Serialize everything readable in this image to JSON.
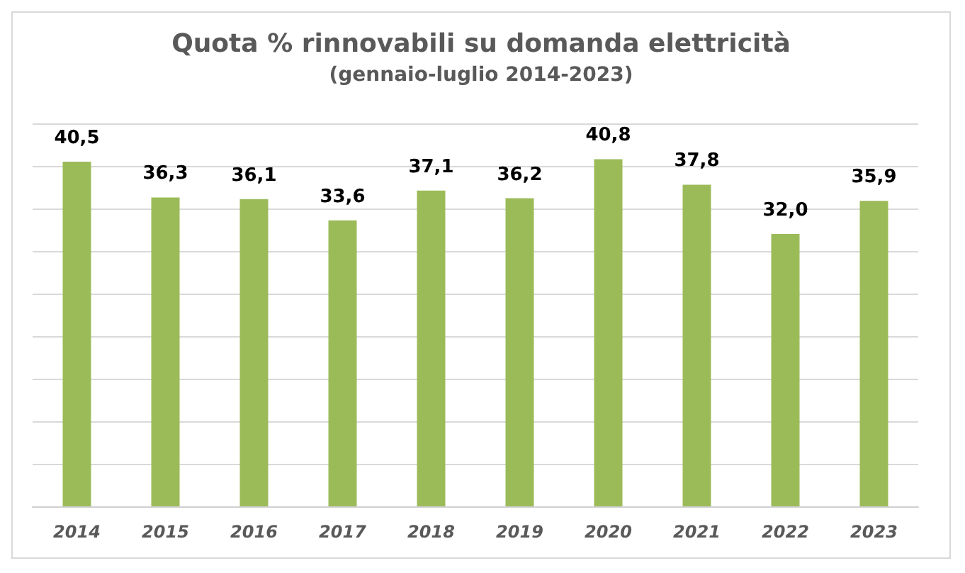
{
  "chart_data": {
    "type": "bar",
    "title": "Quota % rinnovabili su domanda elettricità",
    "subtitle": "(gennaio-luglio 2014-2023)",
    "categories": [
      "2014",
      "2015",
      "2016",
      "2017",
      "2018",
      "2019",
      "2020",
      "2021",
      "2022",
      "2023"
    ],
    "values": [
      40.5,
      36.3,
      36.1,
      33.6,
      37.1,
      36.2,
      40.8,
      37.8,
      32.0,
      35.9
    ],
    "value_labels": [
      "40,5",
      "36,3",
      "36,1",
      "33,6",
      "37,1",
      "36,2",
      "40,8",
      "37,8",
      "32,0",
      "35,9"
    ],
    "color": "#9bbb59",
    "ylim": [
      0,
      45
    ],
    "yticks": [
      {
        "value": 0,
        "label": null
      },
      {
        "value": 5,
        "label": null
      },
      {
        "value": 10,
        "label": null
      },
      {
        "value": 15,
        "label": null
      },
      {
        "value": 20,
        "label": null
      },
      {
        "value": 25,
        "label": null
      },
      {
        "value": 30,
        "label": null
      },
      {
        "value": 35,
        "label": null
      },
      {
        "value": 40,
        "label": null
      },
      {
        "value": 45,
        "label": null
      }
    ],
    "tick_labels": "x",
    "grid": "y"
  }
}
